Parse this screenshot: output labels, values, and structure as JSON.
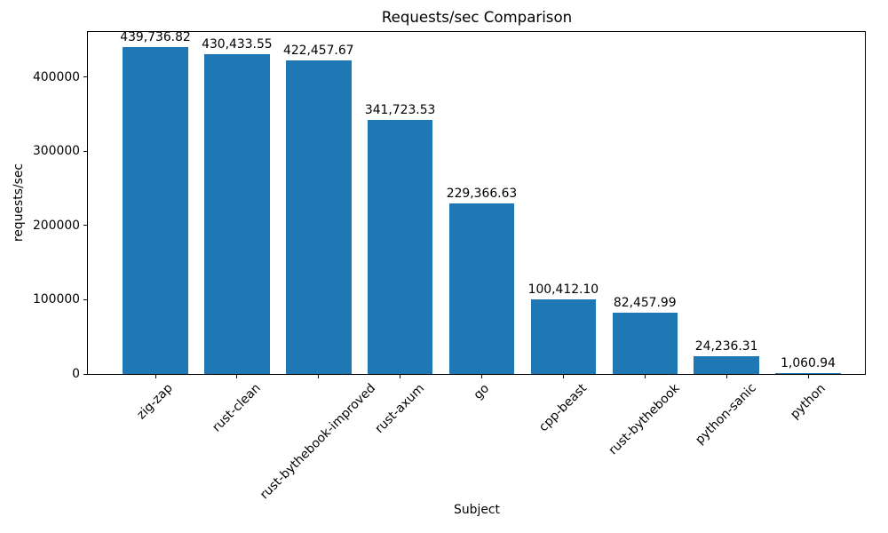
{
  "chart_data": {
    "type": "bar",
    "title": "Requests/sec Comparison",
    "xlabel": "Subject",
    "ylabel": "requests/sec",
    "categories": [
      "zig-zap",
      "rust-clean",
      "rust-bythebook-improved",
      "rust-axum",
      "go",
      "cpp-beast",
      "rust-bythebook",
      "python-sanic",
      "python"
    ],
    "values": [
      439736.82,
      430433.55,
      422457.67,
      341723.53,
      229366.63,
      100412.1,
      82457.99,
      24236.31,
      1060.94
    ],
    "value_labels": [
      "439,736.82",
      "430,433.55",
      "422,457.67",
      "341,723.53",
      "229,366.63",
      "100,412.10",
      "82,457.99",
      "24,236.31",
      "1,060.94"
    ],
    "yticks": [
      0,
      100000,
      200000,
      300000,
      400000
    ],
    "ytick_labels": [
      "0",
      "100000",
      "200000",
      "300000",
      "400000"
    ],
    "ylim": [
      0,
      461724
    ],
    "x_tick_rotation_deg": 45,
    "bar_color": "#1f77b4",
    "text_color": "#000000",
    "grid": false,
    "legend": null
  }
}
